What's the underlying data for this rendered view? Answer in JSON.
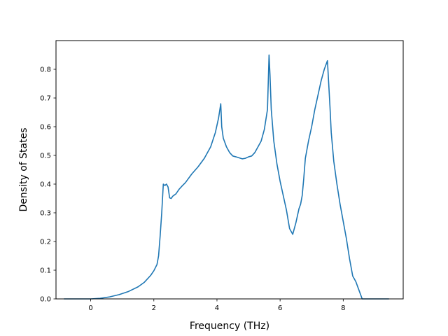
{
  "chart_data": {
    "type": "line",
    "title": "",
    "xlabel": "Frequency (THz)",
    "ylabel": "Density of States",
    "xlim": [
      -1.1,
      9.9
    ],
    "ylim": [
      0.0,
      0.9
    ],
    "xticks": [
      0,
      2,
      4,
      6,
      8
    ],
    "yticks": [
      0.0,
      0.1,
      0.2,
      0.3,
      0.4,
      0.5,
      0.6,
      0.7,
      0.8
    ],
    "ytick_labels": [
      "0.0",
      "0.1",
      "0.2",
      "0.3",
      "0.4",
      "0.5",
      "0.6",
      "0.7",
      "0.8"
    ],
    "grid": false,
    "legend": "none",
    "series": [
      {
        "color": "#1f77b4",
        "x": [
          -0.85,
          -0.5,
          0.0,
          0.3,
          0.6,
          0.9,
          1.2,
          1.5,
          1.7,
          1.9,
          2.0,
          2.1,
          2.15,
          2.2,
          2.25,
          2.3,
          2.35,
          2.4,
          2.45,
          2.5,
          2.55,
          2.6,
          2.7,
          2.8,
          2.9,
          3.0,
          3.2,
          3.4,
          3.6,
          3.8,
          3.95,
          4.05,
          4.12,
          4.15,
          4.2,
          4.3,
          4.4,
          4.5,
          4.6,
          4.8,
          4.9,
          5.0,
          5.1,
          5.2,
          5.3,
          5.4,
          5.5,
          5.6,
          5.65,
          5.68,
          5.72,
          5.8,
          5.9,
          6.0,
          6.1,
          6.2,
          6.3,
          6.4,
          6.5,
          6.6,
          6.65,
          6.7,
          6.75,
          6.8,
          6.9,
          7.0,
          7.1,
          7.2,
          7.3,
          7.4,
          7.5,
          7.58,
          7.62,
          7.7,
          7.8,
          7.9,
          8.0,
          8.1,
          8.2,
          8.3,
          8.4,
          8.5,
          8.6,
          8.65,
          9.0,
          9.45
        ],
        "y": [
          0.0,
          0.0,
          0.0,
          0.002,
          0.007,
          0.015,
          0.026,
          0.042,
          0.058,
          0.082,
          0.098,
          0.12,
          0.15,
          0.22,
          0.3,
          0.4,
          0.395,
          0.4,
          0.39,
          0.352,
          0.35,
          0.358,
          0.366,
          0.382,
          0.394,
          0.405,
          0.435,
          0.46,
          0.49,
          0.53,
          0.58,
          0.63,
          0.68,
          0.6,
          0.56,
          0.53,
          0.51,
          0.498,
          0.495,
          0.488,
          0.49,
          0.495,
          0.498,
          0.51,
          0.53,
          0.55,
          0.59,
          0.66,
          0.85,
          0.78,
          0.66,
          0.55,
          0.47,
          0.41,
          0.36,
          0.31,
          0.245,
          0.225,
          0.265,
          0.315,
          0.33,
          0.36,
          0.42,
          0.49,
          0.55,
          0.6,
          0.66,
          0.71,
          0.76,
          0.8,
          0.83,
          0.67,
          0.58,
          0.48,
          0.4,
          0.33,
          0.27,
          0.21,
          0.14,
          0.08,
          0.06,
          0.03,
          0.0,
          0.0,
          0.0,
          0.0
        ]
      }
    ]
  }
}
